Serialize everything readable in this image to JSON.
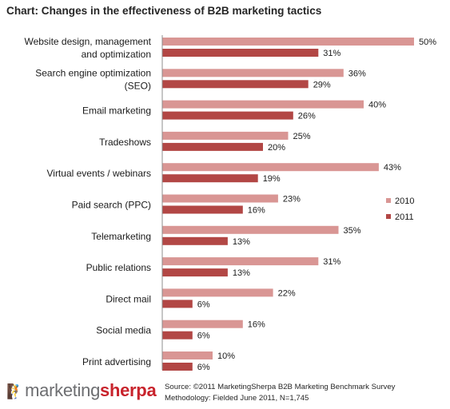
{
  "header": {
    "title": "Chart: Changes in the effectiveness of B2B marketing tactics"
  },
  "chart_data": {
    "type": "bar",
    "orientation": "horizontal",
    "categories": [
      [
        "Website design, management",
        "and optimization"
      ],
      [
        "Search engine optimization",
        "(SEO)"
      ],
      [
        "Email marketing"
      ],
      [
        "Tradeshows"
      ],
      [
        "Virtual events / webinars"
      ],
      [
        "Paid search (PPC)"
      ],
      [
        "Telemarketing"
      ],
      [
        "Public relations"
      ],
      [
        "Direct mail"
      ],
      [
        "Social media"
      ],
      [
        "Print advertising"
      ]
    ],
    "series": [
      {
        "name": "2010",
        "color": "#d99694",
        "values": [
          50,
          36,
          40,
          25,
          43,
          23,
          35,
          31,
          22,
          16,
          10
        ]
      },
      {
        "name": "2011",
        "color": "#b24745",
        "values": [
          31,
          29,
          26,
          20,
          19,
          16,
          13,
          13,
          6,
          6,
          6
        ]
      }
    ],
    "value_suffix": "%",
    "xlim": [
      0,
      50
    ],
    "grid": false,
    "legend_position": "right"
  },
  "footer": {
    "logo_part1": "marketing",
    "logo_part2": "sherpa",
    "source_line": "Source: ©2011 MarketingSherpa B2B Marketing Benchmark Survey",
    "methodology_line": "Methodology: Fielded June 2011, N=1,745"
  }
}
